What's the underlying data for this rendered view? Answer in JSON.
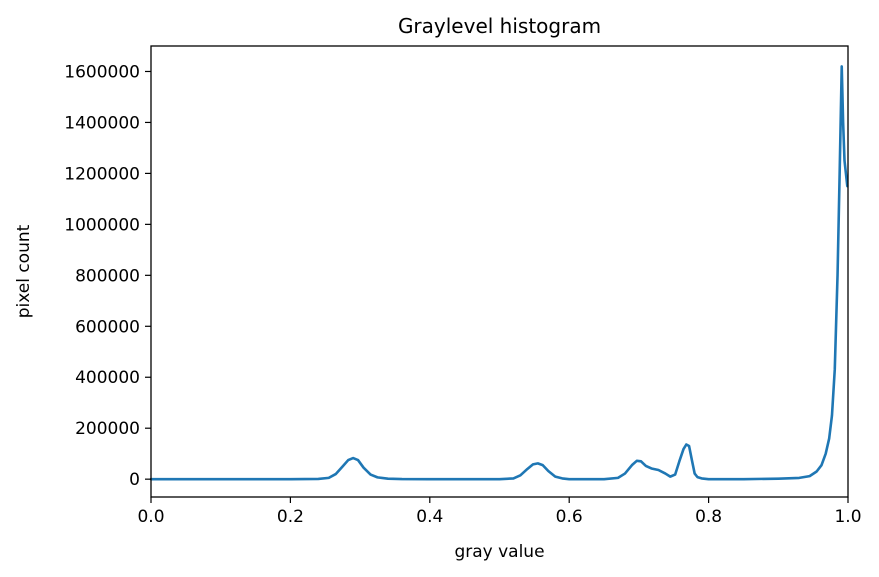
{
  "chart_data": {
    "type": "line",
    "title": "Graylevel histogram",
    "xlabel": "gray value",
    "ylabel": "pixel count",
    "xlim": [
      0.0,
      1.0
    ],
    "ylim": [
      -70000,
      1700000
    ],
    "x_ticks": [
      0.0,
      0.2,
      0.4,
      0.6,
      0.8,
      1.0
    ],
    "x_tick_labels": [
      "0.0",
      "0.2",
      "0.4",
      "0.6",
      "0.8",
      "1.0"
    ],
    "y_ticks": [
      0,
      200000,
      400000,
      600000,
      800000,
      1000000,
      1200000,
      1400000,
      1600000
    ],
    "y_tick_labels": [
      "0",
      "200000",
      "400000",
      "600000",
      "800000",
      "1000000",
      "1200000",
      "1400000",
      "1600000"
    ],
    "grid": false,
    "line_color": "#1f77b4",
    "series": [
      {
        "x": [
          0.0,
          0.1,
          0.2,
          0.24,
          0.255,
          0.265,
          0.275,
          0.283,
          0.29,
          0.297,
          0.305,
          0.315,
          0.325,
          0.34,
          0.36,
          0.4,
          0.45,
          0.5,
          0.52,
          0.53,
          0.54,
          0.548,
          0.555,
          0.562,
          0.57,
          0.58,
          0.59,
          0.6,
          0.65,
          0.67,
          0.68,
          0.69,
          0.697,
          0.703,
          0.71,
          0.718,
          0.728,
          0.738,
          0.745,
          0.752,
          0.758,
          0.764,
          0.768,
          0.772,
          0.776,
          0.78,
          0.784,
          0.79,
          0.8,
          0.85,
          0.9,
          0.93,
          0.945,
          0.955,
          0.962,
          0.968,
          0.973,
          0.977,
          0.981,
          0.985,
          0.988,
          0.991,
          0.993,
          0.995,
          0.997,
          0.999
        ],
        "values": [
          0,
          0,
          0,
          1000,
          5000,
          20000,
          50000,
          75000,
          83000,
          75000,
          45000,
          18000,
          7000,
          2000,
          500,
          0,
          0,
          0,
          3000,
          15000,
          40000,
          58000,
          62000,
          55000,
          32000,
          10000,
          3000,
          0,
          0,
          5000,
          22000,
          55000,
          72000,
          70000,
          52000,
          42000,
          36000,
          22000,
          10000,
          18000,
          70000,
          118000,
          136000,
          130000,
          75000,
          22000,
          8000,
          3000,
          0,
          0,
          2000,
          5000,
          12000,
          30000,
          55000,
          100000,
          160000,
          250000,
          430000,
          800000,
          1200000,
          1620000,
          1400000,
          1250000,
          1200000,
          1150000
        ]
      }
    ]
  }
}
